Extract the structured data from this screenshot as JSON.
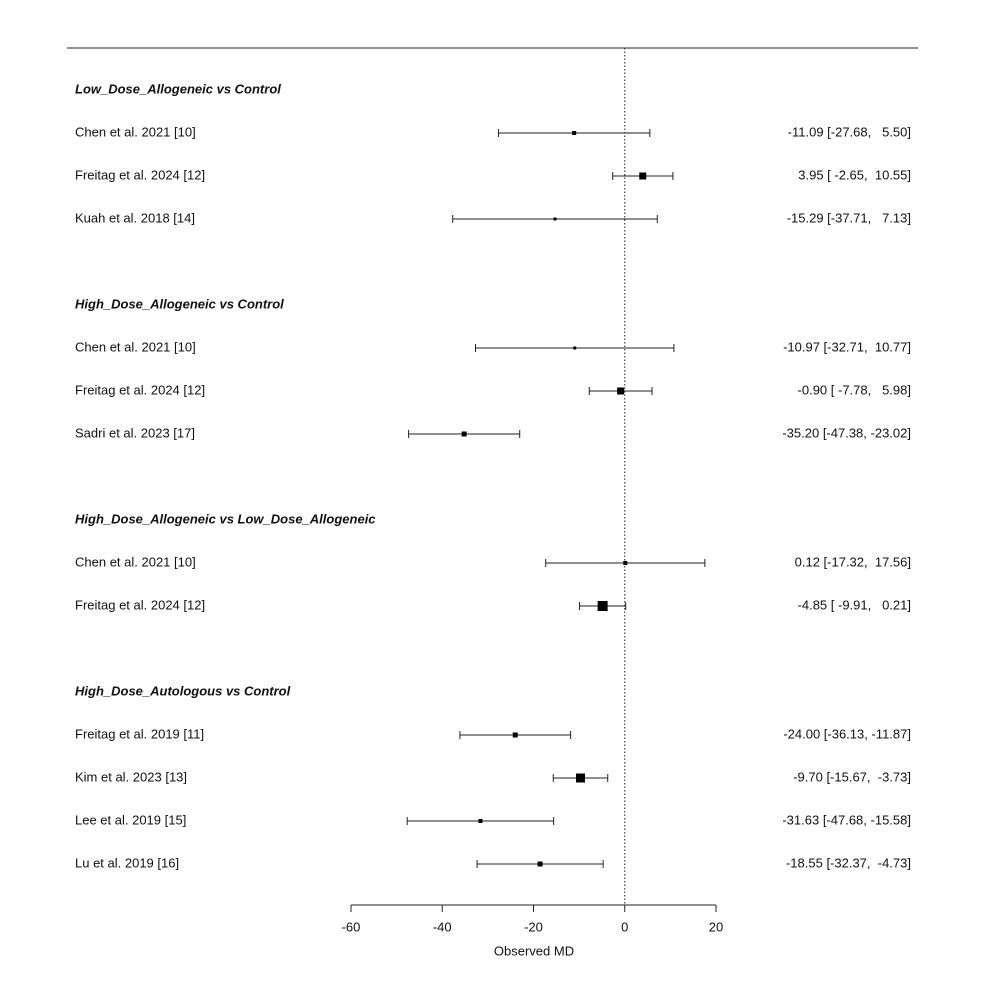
{
  "chart_data": {
    "type": "forest",
    "xlabel": "Observed MD",
    "xlim": [
      -60,
      20
    ],
    "xticks": [
      -60,
      -40,
      -20,
      0,
      20
    ],
    "reference_line": 0,
    "color": "#000000",
    "groups": [
      {
        "title": "Low_Dose_Allogeneic vs Control",
        "studies": [
          "Chen et al. 2021 [10]",
          "Freitag et al. 2024 [12]",
          "Kuah et al. 2018 [14]"
        ],
        "values": [
          -11.09,
          3.95,
          -15.29
        ],
        "lower": [
          -27.68,
          -2.65,
          -37.71
        ],
        "upper": [
          5.5,
          10.55,
          7.13
        ],
        "weights": [
          4,
          7,
          3
        ],
        "value_labels": [
          "-11.09 [-27.68,   5.50]",
          "3.95 [ -2.65,  10.55]",
          "-15.29 [-37.71,   7.13]"
        ]
      },
      {
        "title": "High_Dose_Allogeneic vs Control",
        "studies": [
          "Chen et al. 2021 [10]",
          "Freitag et al. 2024 [12]",
          "Sadri et al. 2023 [17]"
        ],
        "values": [
          -10.97,
          -0.9,
          -35.2
        ],
        "lower": [
          -32.71,
          -7.78,
          -47.38
        ],
        "upper": [
          10.77,
          5.98,
          -23.02
        ],
        "weights": [
          3,
          7,
          5
        ],
        "value_labels": [
          "-10.97 [-32.71,  10.77]",
          "-0.90 [ -7.78,   5.98]",
          "-35.20 [-47.38, -23.02]"
        ]
      },
      {
        "title": "High_Dose_Allogeneic vs Low_Dose_Allogeneic",
        "studies": [
          "Chen et al. 2021 [10]",
          "Freitag et al. 2024 [12]"
        ],
        "values": [
          0.12,
          -4.85
        ],
        "lower": [
          -17.32,
          -9.91
        ],
        "upper": [
          17.56,
          0.21
        ],
        "weights": [
          4,
          10
        ],
        "value_labels": [
          "0.12 [-17.32,  17.56]",
          "-4.85 [ -9.91,   0.21]"
        ]
      },
      {
        "title": "High_Dose_Autologous vs Control",
        "studies": [
          "Freitag et al. 2019 [11]",
          "Kim et al. 2023 [13]",
          "Lee et al. 2019 [15]",
          "Lu et al. 2019 [16]"
        ],
        "values": [
          -24.0,
          -9.7,
          -31.63,
          -18.55
        ],
        "lower": [
          -36.13,
          -15.67,
          -47.68,
          -32.37
        ],
        "upper": [
          -11.87,
          -3.73,
          -15.58,
          -4.73
        ],
        "weights": [
          5,
          9,
          4,
          5
        ],
        "value_labels": [
          "-24.00 [-36.13, -11.87]",
          "-9.70 [-15.67,  -3.73]",
          "-31.63 [-47.68, -15.58]",
          "-18.55 [-32.37,  -4.73]"
        ]
      }
    ]
  }
}
